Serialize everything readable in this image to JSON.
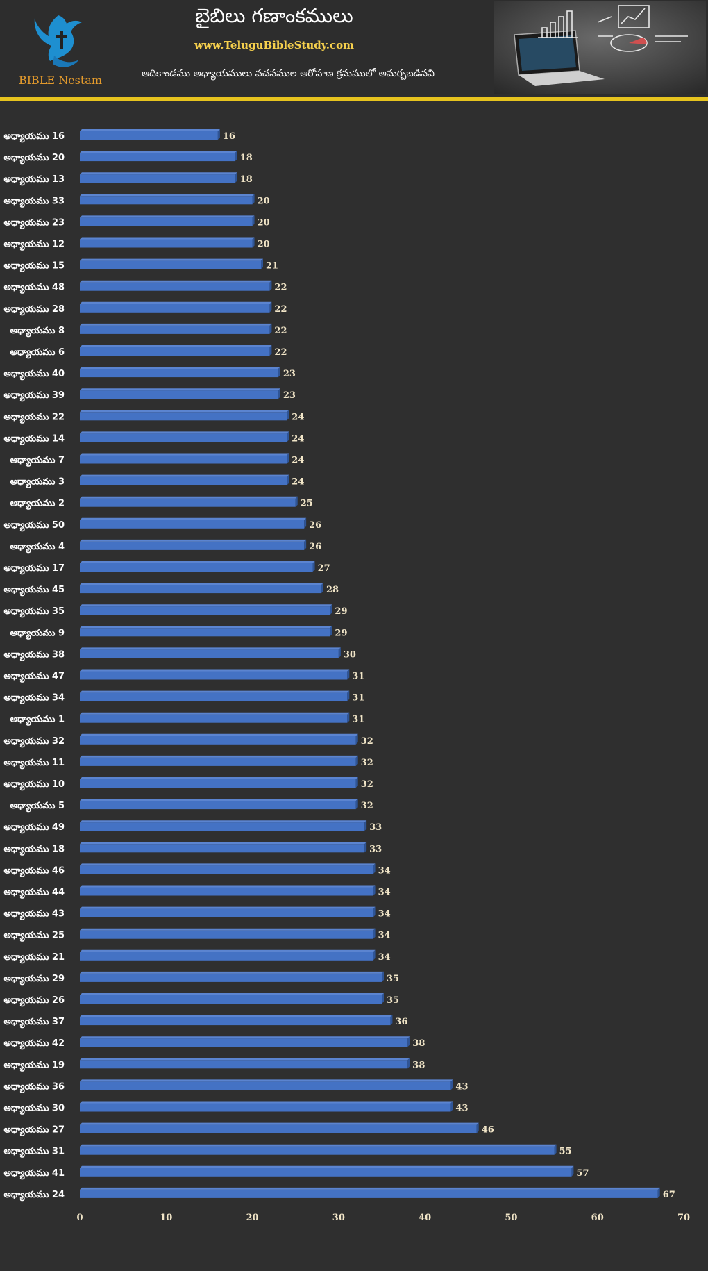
{
  "header": {
    "title": "బైబిలు గణాంకములు",
    "website": "www.TeluguBibleStudy.com",
    "subtitle": "ఆదికాండము అధ్యాయములు వచనముల ఆరోహణ క్రమములో అమర్చబడినవి",
    "logo_text": "BIBLE Nestam"
  },
  "colors": {
    "background": "#2f2f2f",
    "bar": "#4472c4",
    "bar_top": "#5b84d0",
    "bar_side": "#2f5597",
    "label": "#ffffff",
    "value_label": "#f2e6c8",
    "gold": "#e6c31e"
  },
  "chart_data": {
    "type": "bar",
    "orientation": "horizontal",
    "categories": [
      "అధ్యాయము 16",
      "అధ్యాయము 20",
      "అధ్యాయము 13",
      "అధ్యాయము 33",
      "అధ్యాయము 23",
      "అధ్యాయము 12",
      "అధ్యాయము 15",
      "అధ్యాయము 48",
      "అధ్యాయము 28",
      "అధ్యాయము 8",
      "అధ్యాయము 6",
      "అధ్యాయము 40",
      "అధ్యాయము 39",
      "అధ్యాయము 22",
      "అధ్యాయము 14",
      "అధ్యాయము 7",
      "అధ్యాయము 3",
      "అధ్యాయము 2",
      "అధ్యాయము 50",
      "అధ్యాయము 4",
      "అధ్యాయము 17",
      "అధ్యాయము 45",
      "అధ్యాయము 35",
      "అధ్యాయము 9",
      "అధ్యాయము 38",
      "అధ్యాయము 47",
      "అధ్యాయము 34",
      "అధ్యాయము 1",
      "అధ్యాయము 32",
      "అధ్యాయము 11",
      "అధ్యాయము 10",
      "అధ్యాయము 5",
      "అధ్యాయము 49",
      "అధ్యాయము 18",
      "అధ్యాయము 46",
      "అధ్యాయము 44",
      "అధ్యాయము 43",
      "అధ్యాయము 25",
      "అధ్యాయము 21",
      "అధ్యాయము 29",
      "అధ్యాయము 26",
      "అధ్యాయము 37",
      "అధ్యాయము 42",
      "అధ్యాయము 19",
      "అధ్యాయము 36",
      "అధ్యాయము 30",
      "అధ్యాయము 27",
      "అధ్యాయము 31",
      "అధ్యాయము 41",
      "అధ్యాయము 24"
    ],
    "values": [
      16,
      18,
      18,
      20,
      20,
      20,
      21,
      22,
      22,
      22,
      22,
      23,
      23,
      24,
      24,
      24,
      24,
      25,
      26,
      26,
      27,
      28,
      29,
      29,
      30,
      31,
      31,
      31,
      32,
      32,
      32,
      32,
      33,
      33,
      34,
      34,
      34,
      34,
      34,
      35,
      35,
      36,
      38,
      38,
      43,
      43,
      46,
      55,
      57,
      67
    ],
    "xlim": [
      0,
      70
    ],
    "xticks": [
      0,
      10,
      20,
      30,
      40,
      50,
      60,
      70
    ],
    "grid": false,
    "legend": "none"
  }
}
